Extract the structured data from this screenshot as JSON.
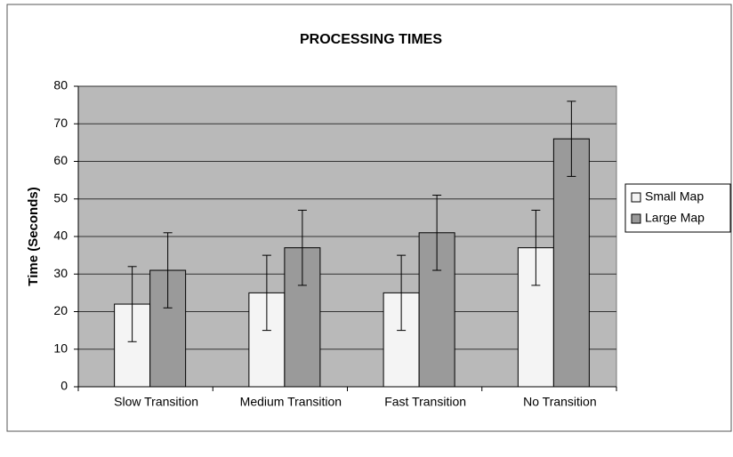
{
  "chart_data": {
    "type": "bar",
    "title": "PROCESSING TIMES",
    "y_label": "Time (Seconds)",
    "categories": [
      "Slow Transition",
      "Medium Transition",
      "Fast Transition",
      "No Transition"
    ],
    "series": [
      {
        "name": "Small Map",
        "color": "#f4f4f4",
        "values": [
          22,
          25,
          25,
          37
        ],
        "errors": [
          10,
          10,
          10,
          10
        ]
      },
      {
        "name": "Large Map",
        "color": "#9a9a9a",
        "values": [
          31,
          37,
          41,
          66
        ],
        "errors": [
          10,
          10,
          10,
          10
        ]
      }
    ],
    "ylim": [
      0,
      80
    ],
    "yticks": [
      0,
      10,
      20,
      30,
      40,
      50,
      60,
      70,
      80
    ],
    "grid": true,
    "legend": "right"
  }
}
